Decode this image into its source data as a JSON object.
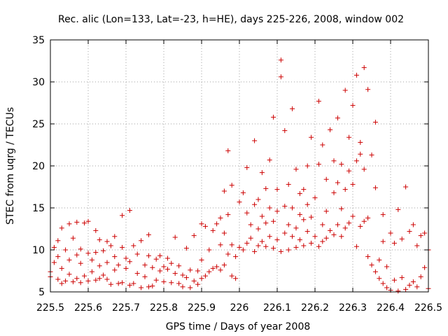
{
  "chart_data": {
    "type": "scatter",
    "title": "Rec. alic (Lon=133, Lat=-23, h=HE), days 225-226, 2008, window 002",
    "xlabel": "GPS time / Days of year 2008",
    "ylabel": "STEC from uqrg / TECUs",
    "xlim": [
      225.5,
      226.5
    ],
    "ylim": [
      5,
      35
    ],
    "x_ticks": [
      "225.5",
      "225.6",
      "225.7",
      "225.8",
      "225.9",
      "226",
      "226.1",
      "226.2",
      "226.3",
      "226.4",
      "226.5"
    ],
    "y_ticks": [
      "5",
      "10",
      "15",
      "20",
      "25",
      "30",
      "35"
    ],
    "grid": true,
    "marker": "+",
    "color": "#cc0000",
    "series": [
      {
        "name": "STEC",
        "points": [
          [
            225.5,
            6.8
          ],
          [
            225.5,
            7.4
          ],
          [
            225.51,
            8.5
          ],
          [
            225.51,
            10.3
          ],
          [
            225.52,
            6.5
          ],
          [
            225.52,
            9.2
          ],
          [
            225.52,
            11.1
          ],
          [
            225.53,
            6.0
          ],
          [
            225.53,
            7.8
          ],
          [
            225.53,
            12.6
          ],
          [
            225.54,
            6.3
          ],
          [
            225.54,
            10.0
          ],
          [
            225.55,
            7.1
          ],
          [
            225.55,
            13.1
          ],
          [
            225.55,
            8.8
          ],
          [
            225.56,
            6.2
          ],
          [
            225.56,
            11.4
          ],
          [
            225.57,
            6.6
          ],
          [
            225.57,
            9.4
          ],
          [
            225.57,
            13.3
          ],
          [
            225.58,
            6.1
          ],
          [
            225.58,
            8.4
          ],
          [
            225.58,
            10.1
          ],
          [
            225.59,
            6.9
          ],
          [
            225.59,
            13.2
          ],
          [
            225.6,
            6.3
          ],
          [
            225.6,
            9.6
          ],
          [
            225.6,
            13.4
          ],
          [
            225.61,
            7.4
          ],
          [
            225.61,
            8.8
          ],
          [
            225.62,
            6.4
          ],
          [
            225.62,
            12.3
          ],
          [
            225.62,
            9.7
          ],
          [
            225.63,
            6.6
          ],
          [
            225.63,
            8.1
          ],
          [
            225.63,
            11.2
          ],
          [
            225.64,
            7.0
          ],
          [
            225.64,
            9.9
          ],
          [
            225.65,
            6.5
          ],
          [
            225.65,
            11.0
          ],
          [
            225.65,
            8.5
          ],
          [
            225.66,
            5.9
          ],
          [
            225.66,
            10.5
          ],
          [
            225.67,
            7.6
          ],
          [
            225.67,
            9.2
          ],
          [
            225.67,
            11.6
          ],
          [
            225.68,
            6.0
          ],
          [
            225.68,
            8.2
          ],
          [
            225.69,
            6.1
          ],
          [
            225.69,
            10.3
          ],
          [
            225.69,
            14.1
          ],
          [
            225.7,
            7.8
          ],
          [
            225.7,
            9.0
          ],
          [
            225.71,
            5.8
          ],
          [
            225.71,
            14.7
          ],
          [
            225.71,
            8.6
          ],
          [
            225.72,
            6.0
          ],
          [
            225.72,
            10.5
          ],
          [
            225.73,
            7.2
          ],
          [
            225.73,
            9.5
          ],
          [
            225.74,
            5.5
          ],
          [
            225.74,
            11.1
          ],
          [
            225.75,
            6.8
          ],
          [
            225.75,
            8.2
          ],
          [
            225.76,
            5.6
          ],
          [
            225.76,
            11.8
          ],
          [
            225.76,
            9.3
          ],
          [
            225.77,
            5.7
          ],
          [
            225.77,
            7.9
          ],
          [
            225.78,
            6.4
          ],
          [
            225.78,
            8.9
          ],
          [
            225.79,
            7.5
          ],
          [
            225.79,
            9.3
          ],
          [
            225.8,
            6.2
          ],
          [
            225.8,
            8.0
          ],
          [
            225.81,
            7.7
          ],
          [
            225.81,
            9.0
          ],
          [
            225.82,
            6.1
          ],
          [
            225.82,
            8.4
          ],
          [
            225.83,
            7.2
          ],
          [
            225.83,
            11.5
          ],
          [
            225.84,
            6.0
          ],
          [
            225.84,
            8.1
          ],
          [
            225.85,
            5.6
          ],
          [
            225.85,
            7.0
          ],
          [
            225.86,
            6.7
          ],
          [
            225.86,
            10.2
          ],
          [
            225.87,
            5.5
          ],
          [
            225.87,
            7.6
          ],
          [
            225.88,
            6.3
          ],
          [
            225.88,
            11.7
          ],
          [
            225.89,
            5.9
          ],
          [
            225.89,
            7.5
          ],
          [
            225.9,
            6.6
          ],
          [
            225.9,
            13.1
          ],
          [
            225.9,
            8.8
          ],
          [
            225.91,
            6.9
          ],
          [
            225.91,
            12.8
          ],
          [
            225.92,
            7.4
          ],
          [
            225.92,
            10.0
          ],
          [
            225.93,
            7.8
          ],
          [
            225.93,
            12.3
          ],
          [
            225.94,
            8.0
          ],
          [
            225.94,
            13.1
          ],
          [
            225.95,
            7.6
          ],
          [
            225.95,
            10.6
          ],
          [
            225.95,
            13.8
          ],
          [
            225.96,
            8.2
          ],
          [
            225.96,
            12.0
          ],
          [
            225.96,
            17.0
          ],
          [
            225.97,
            9.5
          ],
          [
            225.97,
            21.8
          ],
          [
            225.97,
            14.2
          ],
          [
            225.98,
            6.9
          ],
          [
            225.98,
            10.6
          ],
          [
            225.98,
            17.7
          ],
          [
            225.99,
            6.6
          ],
          [
            225.99,
            9.2
          ],
          [
            226.0,
            10.3
          ],
          [
            226.0,
            15.7
          ],
          [
            226.01,
            10.0
          ],
          [
            226.01,
            16.8
          ],
          [
            226.02,
            10.8
          ],
          [
            226.02,
            14.4
          ],
          [
            226.02,
            19.8
          ],
          [
            226.03,
            11.4
          ],
          [
            226.03,
            13.0
          ],
          [
            226.04,
            9.8
          ],
          [
            226.04,
            15.4
          ],
          [
            226.04,
            23.0
          ],
          [
            226.05,
            10.5
          ],
          [
            226.05,
            12.5
          ],
          [
            226.05,
            16.0
          ],
          [
            226.06,
            11.0
          ],
          [
            226.06,
            14.0
          ],
          [
            226.06,
            19.2
          ],
          [
            226.07,
            10.4
          ],
          [
            226.07,
            13.2
          ],
          [
            226.07,
            17.3
          ],
          [
            226.08,
            11.6
          ],
          [
            226.08,
            15.0
          ],
          [
            226.08,
            20.7
          ],
          [
            226.09,
            10.2
          ],
          [
            226.09,
            13.4
          ],
          [
            226.09,
            25.8
          ],
          [
            226.1,
            11.2
          ],
          [
            226.1,
            14.6
          ],
          [
            226.1,
            17.2
          ],
          [
            226.11,
            9.8
          ],
          [
            226.11,
            32.6
          ],
          [
            226.11,
            30.6
          ],
          [
            226.12,
            12.0
          ],
          [
            226.12,
            15.2
          ],
          [
            226.12,
            24.2
          ],
          [
            226.13,
            10.0
          ],
          [
            226.13,
            13.0
          ],
          [
            226.13,
            17.8
          ],
          [
            226.14,
            11.6
          ],
          [
            226.14,
            15.0
          ],
          [
            226.14,
            26.8
          ],
          [
            226.15,
            10.3
          ],
          [
            226.15,
            12.6
          ],
          [
            226.15,
            19.6
          ],
          [
            226.16,
            11.2
          ],
          [
            226.16,
            16.7
          ],
          [
            226.16,
            14.2
          ],
          [
            226.17,
            10.5
          ],
          [
            226.17,
            13.6
          ],
          [
            226.17,
            17.2
          ],
          [
            226.18,
            12.2
          ],
          [
            226.18,
            15.4
          ],
          [
            226.18,
            20.0
          ],
          [
            226.19,
            10.8
          ],
          [
            226.19,
            13.9
          ],
          [
            226.19,
            23.4
          ],
          [
            226.2,
            11.6
          ],
          [
            226.2,
            16.2
          ],
          [
            226.21,
            10.4
          ],
          [
            226.21,
            20.2
          ],
          [
            226.21,
            27.7
          ],
          [
            226.22,
            11.0
          ],
          [
            226.22,
            13.0
          ],
          [
            226.22,
            22.5
          ],
          [
            226.23,
            11.4
          ],
          [
            226.23,
            14.6
          ],
          [
            226.23,
            18.4
          ],
          [
            226.24,
            12.3
          ],
          [
            226.24,
            24.3
          ],
          [
            226.25,
            11.8
          ],
          [
            226.25,
            16.8
          ],
          [
            226.25,
            20.6
          ],
          [
            226.26,
            13.0
          ],
          [
            226.26,
            18.0
          ],
          [
            226.26,
            25.7
          ],
          [
            226.27,
            11.6
          ],
          [
            226.27,
            14.9
          ],
          [
            226.27,
            20.2
          ],
          [
            226.28,
            12.6
          ],
          [
            226.28,
            17.2
          ],
          [
            226.28,
            29.0
          ],
          [
            226.29,
            13.2
          ],
          [
            226.29,
            19.4
          ],
          [
            226.29,
            23.4
          ],
          [
            226.3,
            14.0
          ],
          [
            226.3,
            17.8
          ],
          [
            226.3,
            27.2
          ],
          [
            226.31,
            10.4
          ],
          [
            226.31,
            20.6
          ],
          [
            226.31,
            30.8
          ],
          [
            226.32,
            12.8
          ],
          [
            226.32,
            21.4
          ],
          [
            226.32,
            22.8
          ],
          [
            226.33,
            13.4
          ],
          [
            226.33,
            19.6
          ],
          [
            226.33,
            31.7
          ],
          [
            226.34,
            9.2
          ],
          [
            226.34,
            13.8
          ],
          [
            226.34,
            29.1
          ],
          [
            226.35,
            8.2
          ],
          [
            226.35,
            21.3
          ],
          [
            226.36,
            7.4
          ],
          [
            226.36,
            17.4
          ],
          [
            226.36,
            25.2
          ],
          [
            226.37,
            6.6
          ],
          [
            226.37,
            8.8
          ],
          [
            226.38,
            6.0
          ],
          [
            226.38,
            14.2
          ],
          [
            226.38,
            11.0
          ],
          [
            226.39,
            5.5
          ],
          [
            226.39,
            8.0
          ],
          [
            226.4,
            5.2
          ],
          [
            226.4,
            12.0
          ],
          [
            226.41,
            6.4
          ],
          [
            226.41,
            10.8
          ],
          [
            226.42,
            5.1
          ],
          [
            226.42,
            14.8
          ],
          [
            226.43,
            6.7
          ],
          [
            226.43,
            11.3
          ],
          [
            226.44,
            5.3
          ],
          [
            226.44,
            17.5
          ],
          [
            226.45,
            5.8
          ],
          [
            226.45,
            12.2
          ],
          [
            226.46,
            6.2
          ],
          [
            226.46,
            13.0
          ],
          [
            226.47,
            5.6
          ],
          [
            226.47,
            10.5
          ],
          [
            226.48,
            6.8
          ],
          [
            226.48,
            11.7
          ],
          [
            226.49,
            7.9
          ],
          [
            226.49,
            12.0
          ],
          [
            226.5,
            5.4
          ],
          [
            226.5,
            10.0
          ]
        ]
      }
    ]
  }
}
